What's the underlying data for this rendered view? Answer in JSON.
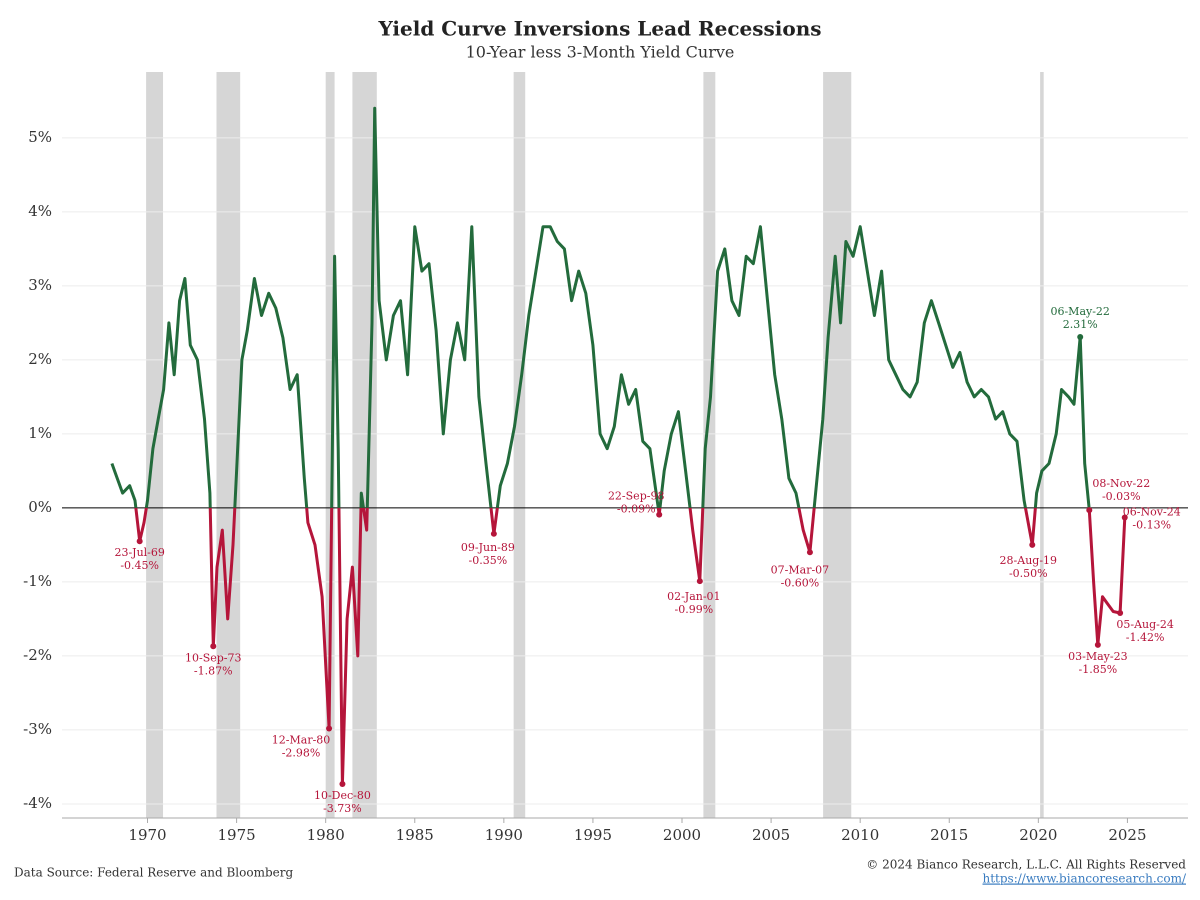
{
  "chart_data": {
    "type": "line",
    "title": "Yield Curve Inversions Lead Recessions",
    "subtitle": "10-Year less 3-Month Yield Curve",
    "source": "Data Source: Federal Reserve and Bloomberg",
    "copyright": "© 2024 Bianco Research, L.L.C. All Rights Reserved",
    "url": "https://www.biancoresearch.com/",
    "xlim": [
      1965.2,
      2028.4
    ],
    "xticks": [
      1970,
      1975,
      1980,
      1985,
      1990,
      1995,
      2000,
      2005,
      2010,
      2015,
      2020,
      2025
    ],
    "ylim": [
      -4.19,
      5.89
    ],
    "yticks": [
      {
        "value": -4,
        "label": "-4%"
      },
      {
        "value": -3,
        "label": "-3%"
      },
      {
        "value": -2,
        "label": "-2%"
      },
      {
        "value": -1,
        "label": "-1%"
      },
      {
        "value": 0,
        "label": "0%"
      },
      {
        "value": 1,
        "label": "1%"
      },
      {
        "value": 2,
        "label": "2%"
      },
      {
        "value": 3,
        "label": "3%"
      },
      {
        "value": 4,
        "label": "4%"
      },
      {
        "value": 5,
        "label": "5%"
      }
    ],
    "grid": true,
    "positive_color": "#236b3c",
    "negative_color": "#b5153a",
    "recession_color": "#d6d6d6",
    "recessions": [
      [
        1969.92,
        1970.87
      ],
      [
        1973.87,
        1975.2
      ],
      [
        1980.0,
        1980.5
      ],
      [
        1981.5,
        1982.87
      ],
      [
        1990.55,
        1991.2
      ],
      [
        2001.2,
        2001.87
      ],
      [
        2007.92,
        2009.5
      ],
      [
        2020.1,
        2020.3
      ]
    ],
    "series": [
      {
        "name": "10-Year less 3-Month Yield Curve",
        "x": [
          1968.0,
          1968.3,
          1968.6,
          1969.0,
          1969.3,
          1969.56,
          1969.8,
          1970.0,
          1970.3,
          1970.6,
          1970.9,
          1971.2,
          1971.5,
          1971.8,
          1972.1,
          1972.4,
          1972.8,
          1973.2,
          1973.5,
          1973.69,
          1973.9,
          1974.2,
          1974.5,
          1974.8,
          1975.0,
          1975.3,
          1975.6,
          1976.0,
          1976.4,
          1976.8,
          1977.2,
          1977.6,
          1978.0,
          1978.4,
          1978.8,
          1979.0,
          1979.4,
          1979.8,
          1980.19,
          1980.5,
          1980.7,
          1980.94,
          1981.2,
          1981.5,
          1981.8,
          1982.0,
          1982.3,
          1982.6,
          1982.75,
          1983.0,
          1983.4,
          1983.8,
          1984.2,
          1984.6,
          1985.0,
          1985.4,
          1985.8,
          1986.2,
          1986.6,
          1987.0,
          1987.4,
          1987.8,
          1988.2,
          1988.6,
          1989.0,
          1989.44,
          1989.8,
          1990.2,
          1990.6,
          1991.0,
          1991.4,
          1991.8,
          1992.2,
          1992.6,
          1993.0,
          1993.4,
          1993.8,
          1994.2,
          1994.6,
          1995.0,
          1995.4,
          1995.8,
          1996.2,
          1996.6,
          1997.0,
          1997.4,
          1997.8,
          1998.2,
          1998.72,
          1999.0,
          1999.4,
          1999.8,
          2000.2,
          2000.6,
          2001.0,
          2001.3,
          2001.6,
          2002.0,
          2002.4,
          2002.8,
          2003.2,
          2003.6,
          2004.0,
          2004.4,
          2004.8,
          2005.2,
          2005.6,
          2006.0,
          2006.4,
          2006.8,
          2007.18,
          2007.5,
          2007.9,
          2008.2,
          2008.6,
          2008.9,
          2009.2,
          2009.6,
          2010.0,
          2010.4,
          2010.8,
          2011.2,
          2011.6,
          2012.0,
          2012.4,
          2012.8,
          2013.2,
          2013.6,
          2014.0,
          2014.4,
          2014.8,
          2015.2,
          2015.6,
          2016.0,
          2016.4,
          2016.8,
          2017.2,
          2017.6,
          2018.0,
          2018.4,
          2018.8,
          2019.2,
          2019.66,
          2019.9,
          2020.2,
          2020.6,
          2021.0,
          2021.3,
          2021.7,
          2022.0,
          2022.35,
          2022.6,
          2022.86,
          2023.1,
          2023.34,
          2023.6,
          2023.9,
          2024.2,
          2024.59,
          2024.85
        ],
        "values": [
          0.6,
          0.4,
          0.2,
          0.3,
          0.1,
          -0.45,
          -0.2,
          0.1,
          0.8,
          1.2,
          1.6,
          2.5,
          1.8,
          2.8,
          3.1,
          2.2,
          2.0,
          1.2,
          0.2,
          -1.87,
          -0.8,
          -0.3,
          -1.5,
          -0.5,
          0.5,
          2.0,
          2.4,
          3.1,
          2.6,
          2.9,
          2.7,
          2.3,
          1.6,
          1.8,
          0.4,
          -0.2,
          -0.5,
          -1.2,
          -2.98,
          3.4,
          0.8,
          -3.73,
          -1.5,
          -0.8,
          -2.0,
          0.2,
          -0.3,
          2.5,
          5.4,
          2.8,
          2.0,
          2.6,
          2.8,
          1.8,
          3.8,
          3.2,
          3.3,
          2.4,
          1.0,
          2.0,
          2.5,
          2.0,
          3.8,
          1.5,
          0.6,
          -0.35,
          0.3,
          0.6,
          1.1,
          1.8,
          2.6,
          3.2,
          3.8,
          3.8,
          3.6,
          3.5,
          2.8,
          3.2,
          2.9,
          2.2,
          1.0,
          0.8,
          1.1,
          1.8,
          1.4,
          1.6,
          0.9,
          0.8,
          -0.09,
          0.5,
          1.0,
          1.3,
          0.5,
          -0.3,
          -0.99,
          0.8,
          1.5,
          3.2,
          3.5,
          2.8,
          2.6,
          3.4,
          3.3,
          3.8,
          2.8,
          1.8,
          1.2,
          0.4,
          0.2,
          -0.3,
          -0.6,
          0.2,
          1.2,
          2.3,
          3.4,
          2.5,
          3.6,
          3.4,
          3.8,
          3.2,
          2.6,
          3.2,
          2.0,
          1.8,
          1.6,
          1.5,
          1.7,
          2.5,
          2.8,
          2.5,
          2.2,
          1.9,
          2.1,
          1.7,
          1.5,
          1.6,
          1.5,
          1.2,
          1.3,
          1.0,
          0.9,
          0.1,
          -0.5,
          0.2,
          0.5,
          0.6,
          1.0,
          1.6,
          1.5,
          1.4,
          2.31,
          0.6,
          -0.03,
          -1.0,
          -1.85,
          -1.2,
          -1.3,
          -1.4,
          -1.42,
          -0.13
        ]
      }
    ],
    "annotations": [
      {
        "label": "23-Jul-69",
        "value_label": "-0.45%",
        "x": 1969.56,
        "value": -0.45
      },
      {
        "label": "10-Sep-73",
        "value_label": "-1.87%",
        "x": 1973.69,
        "value": -1.87
      },
      {
        "label": "12-Mar-80",
        "value_label": "-2.98%",
        "x": 1980.19,
        "value": -2.98
      },
      {
        "label": "10-Dec-80",
        "value_label": "-3.73%",
        "x": 1980.94,
        "value": -3.73
      },
      {
        "label": "09-Jun-89",
        "value_label": "-0.35%",
        "x": 1989.44,
        "value": -0.35
      },
      {
        "label": "22-Sep-98",
        "value_label": "-0.09%",
        "x": 1998.72,
        "value": -0.09
      },
      {
        "label": "02-Jan-01",
        "value_label": "-0.99%",
        "x": 2001.0,
        "value": -0.99
      },
      {
        "label": "07-Mar-07",
        "value_label": "-0.60%",
        "x": 2007.18,
        "value": -0.6
      },
      {
        "label": "28-Aug-19",
        "value_label": "-0.50%",
        "x": 2019.66,
        "value": -0.5
      },
      {
        "label": "06-May-22",
        "value_label": "2.31%",
        "x": 2022.35,
        "value": 2.31
      },
      {
        "label": "08-Nov-22",
        "value_label": "-0.03%",
        "x": 2022.86,
        "value": -0.03
      },
      {
        "label": "03-May-23",
        "value_label": "-1.85%",
        "x": 2023.34,
        "value": -1.85
      },
      {
        "label": "05-Aug-24",
        "value_label": "-1.42%",
        "x": 2024.59,
        "value": -1.42
      },
      {
        "label": "06-Nov-24",
        "value_label": "-0.13%",
        "x": 2024.85,
        "value": -0.13
      }
    ]
  }
}
